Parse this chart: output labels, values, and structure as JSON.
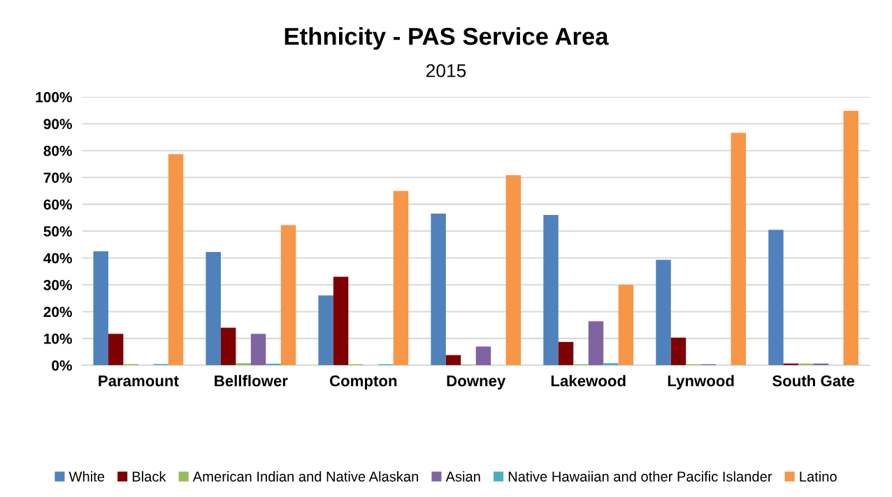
{
  "chart_data": {
    "type": "bar",
    "title": "Ethnicity - PAS Service Area",
    "subtitle": "2015",
    "categories": [
      "Paramount",
      "Bellflower",
      "Compton",
      "Downey",
      "Lakewood",
      "Lynwood",
      "South Gate"
    ],
    "series": [
      {
        "name": "White",
        "color": "#4f81bd",
        "values": [
          42.5,
          42.2,
          26,
          56.5,
          56,
          39.3,
          50.5
        ]
      },
      {
        "name": "Black",
        "color": "#7f0000",
        "values": [
          11.7,
          14,
          33,
          3.8,
          8.7,
          10.3,
          0.7
        ]
      },
      {
        "name": "American Indian and Native Alaskan",
        "color": "#9bbb59",
        "values": [
          0.5,
          0.8,
          0.4,
          0.3,
          0.4,
          0.4,
          0.7
        ]
      },
      {
        "name": "Asian",
        "color": "#8064a2",
        "values": [
          null,
          11.7,
          null,
          7,
          16.4,
          0.4,
          0.7
        ]
      },
      {
        "name": "Native Hawaiian and other Pacific Islander",
        "color": "#4bacc6",
        "values": [
          0.5,
          0.6,
          0.4,
          0,
          0.8,
          null,
          0
        ]
      },
      {
        "name": "Latino",
        "color": "#f79646",
        "values": [
          78.7,
          52.2,
          65,
          70.8,
          30,
          86.6,
          94.8
        ]
      }
    ],
    "ylim": [
      0,
      100
    ],
    "yticks": [
      {
        "value": 0,
        "label": "0%"
      },
      {
        "value": 10,
        "label": "10%"
      },
      {
        "value": 20,
        "label": "20%"
      },
      {
        "value": 30,
        "label": "30%"
      },
      {
        "value": 40,
        "label": "40%"
      },
      {
        "value": 50,
        "label": "50%"
      },
      {
        "value": 60,
        "label": "60%"
      },
      {
        "value": 70,
        "label": "70%"
      },
      {
        "value": 80,
        "label": "80%"
      },
      {
        "value": 90,
        "label": "90%"
      },
      {
        "value": 100,
        "label": "100%"
      }
    ],
    "grid": "y",
    "legend": "bottom"
  }
}
